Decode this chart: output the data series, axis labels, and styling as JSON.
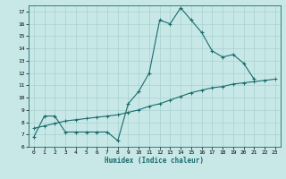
{
  "title": "",
  "xlabel": "Humidex (Indice chaleur)",
  "ylabel": "",
  "bg_color": "#c8e8e8",
  "line_color": "#1a6b6b",
  "grid_color": "#a8d0d0",
  "xlim": [
    -0.5,
    23.5
  ],
  "ylim": [
    6,
    17.5
  ],
  "yticks": [
    6,
    7,
    8,
    9,
    10,
    11,
    12,
    13,
    14,
    15,
    16,
    17
  ],
  "xticks": [
    0,
    1,
    2,
    3,
    4,
    5,
    6,
    7,
    8,
    9,
    10,
    11,
    12,
    13,
    14,
    15,
    16,
    17,
    18,
    19,
    20,
    21,
    22,
    23
  ],
  "series1_x": [
    0,
    1,
    2,
    3,
    4,
    5,
    6,
    7,
    8,
    9,
    10,
    11,
    12,
    13,
    14,
    15,
    16,
    17,
    18,
    19,
    20,
    21
  ],
  "series1_y": [
    6.8,
    8.5,
    8.5,
    7.2,
    7.2,
    7.2,
    7.2,
    7.2,
    6.5,
    9.5,
    10.5,
    12.0,
    16.3,
    16.0,
    17.3,
    16.3,
    15.3,
    13.8,
    13.3,
    13.5,
    12.8,
    11.5
  ],
  "series2_x": [
    0,
    1,
    2,
    3,
    4,
    5,
    6,
    7,
    8,
    9,
    10,
    11,
    12,
    13,
    14,
    15,
    16,
    17,
    18,
    19,
    20,
    21,
    22,
    23
  ],
  "series2_y": [
    7.5,
    7.7,
    7.9,
    8.1,
    8.2,
    8.3,
    8.4,
    8.5,
    8.6,
    8.8,
    9.0,
    9.3,
    9.5,
    9.8,
    10.1,
    10.4,
    10.6,
    10.8,
    10.9,
    11.1,
    11.2,
    11.3,
    11.4,
    11.5
  ],
  "xlabel_fontsize": 5.5,
  "tick_fontsize": 4.5
}
